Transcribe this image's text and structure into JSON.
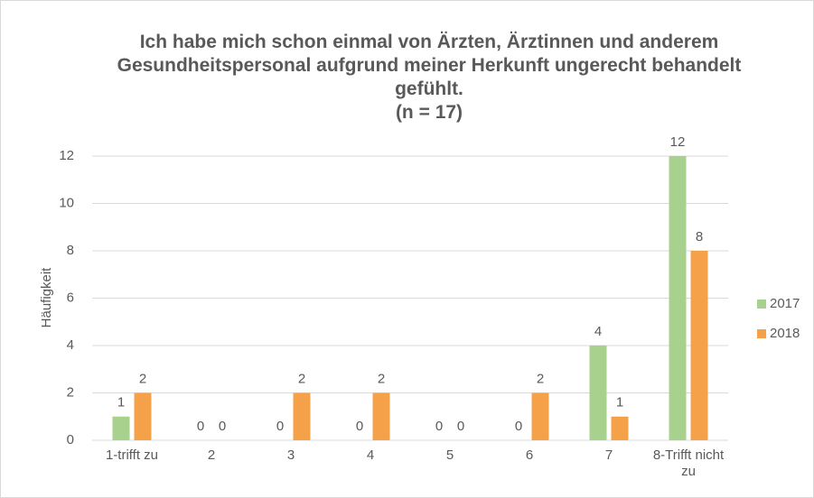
{
  "chart_data": {
    "type": "bar",
    "title": "Ich habe mich schon einmal von Ärzten, Ärztinnen und anderem Gesundheitspersonal aufgrund meiner Herkunft ungerecht behandelt gefühlt.",
    "subtitle": "(n = 17)",
    "y_label": "Häufigkeit",
    "categories": [
      "1-trifft zu",
      "2",
      "3",
      "4",
      "5",
      "6",
      "7",
      "8-Trifft nicht zu"
    ],
    "series": [
      {
        "name": "2017",
        "color": "#a9d18e",
        "values": [
          1,
          0,
          0,
          0,
          0,
          0,
          4,
          12
        ]
      },
      {
        "name": "2018",
        "color": "#f4a14a",
        "values": [
          2,
          0,
          2,
          2,
          0,
          2,
          1,
          8
        ]
      }
    ],
    "ylim": [
      0,
      12
    ],
    "yticks": [
      0,
      2,
      4,
      6,
      8,
      10,
      12
    ],
    "grid": true,
    "legend": "right"
  }
}
